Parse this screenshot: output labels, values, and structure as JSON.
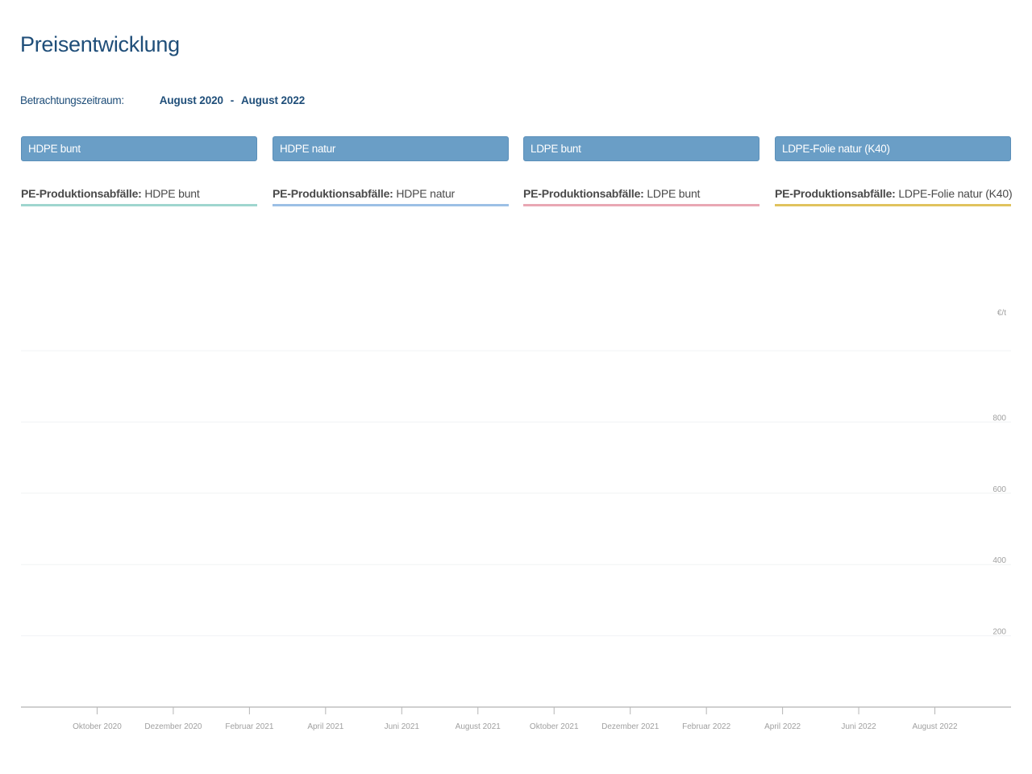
{
  "page": {
    "title": "Preisentwicklung",
    "period_label": "Betrachtungszeitraum:",
    "period_from": "August 2020",
    "period_separator": "-",
    "period_to": "August 2022"
  },
  "tabs": [
    {
      "label": "HDPE bunt"
    },
    {
      "label": "HDPE natur"
    },
    {
      "label": "LDPE bunt"
    },
    {
      "label": "LDPE-Folie natur (K40)"
    }
  ],
  "legend": [
    {
      "prefix": "PE-Produktionsabfälle:",
      "label": "HDPE bunt",
      "color": "#9fd6cf"
    },
    {
      "prefix": "PE-Produktionsabfälle:",
      "label": "HDPE natur",
      "color": "#9cc0e6"
    },
    {
      "prefix": "PE-Produktionsabfälle:",
      "label": "LDPE bunt",
      "color": "#e9a7b4"
    },
    {
      "prefix": "PE-Produktionsabfälle:",
      "label": "LDPE-Folie natur (K40)",
      "color": "#e0c35e"
    }
  ],
  "chart_data": {
    "type": "line",
    "unit_label": "€/t",
    "ylim": [
      0,
      1000
    ],
    "y_ticks": [
      200,
      400,
      600,
      800
    ],
    "y_gridlines": [
      200,
      400,
      600,
      800,
      1000
    ],
    "x_range": [
      "2020-08",
      "2022-10"
    ],
    "x_ticks": [
      {
        "date": "2020-10",
        "label": "Oktober 2020"
      },
      {
        "date": "2020-12",
        "label": "Dezember 2020"
      },
      {
        "date": "2021-02",
        "label": "Februar 2021"
      },
      {
        "date": "2021-04",
        "label": "April 2021"
      },
      {
        "date": "2021-06",
        "label": "Juni 2021"
      },
      {
        "date": "2021-08",
        "label": "August 2021"
      },
      {
        "date": "2021-10",
        "label": "Oktober 2021"
      },
      {
        "date": "2021-12",
        "label": "Dezember 2021"
      },
      {
        "date": "2022-02",
        "label": "Februar 2022"
      },
      {
        "date": "2022-04",
        "label": "April 2022"
      },
      {
        "date": "2022-06",
        "label": "Juni 2022"
      },
      {
        "date": "2022-08",
        "label": "August 2022"
      }
    ],
    "series": [],
    "grid": true,
    "axis_color": "#b5b5b5",
    "tick_label_color": "#a0a0a0"
  }
}
